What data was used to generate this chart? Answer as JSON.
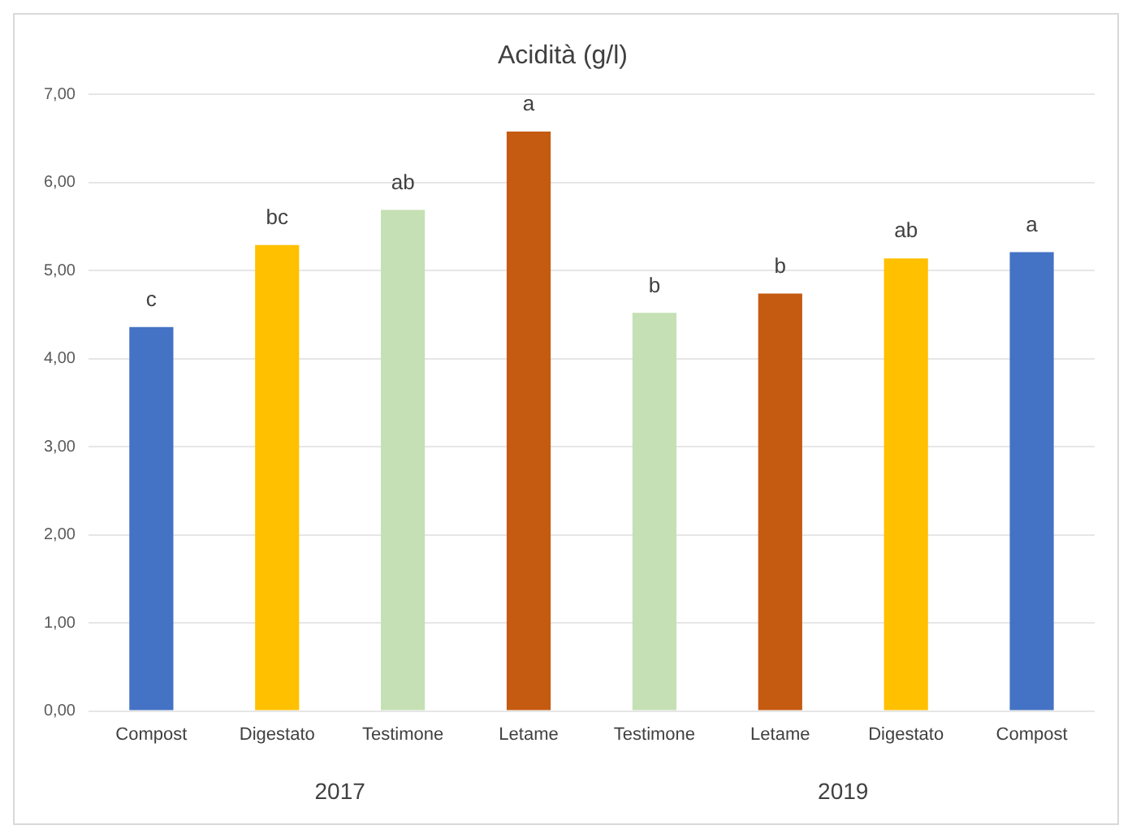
{
  "chart_data": {
    "type": "bar",
    "title": "Acidità (g/l)",
    "categories": [
      "Compost",
      "Digestato",
      "Testimone",
      "Letame",
      "Testimone",
      "Letame",
      "Digestato",
      "Compost"
    ],
    "values": [
      4.36,
      5.29,
      5.69,
      6.58,
      4.52,
      4.74,
      5.14,
      5.21
    ],
    "colors": [
      "#4472c4",
      "#ffc000",
      "#c5e0b4",
      "#c55a11",
      "#c5e0b4",
      "#c55a11",
      "#ffc000",
      "#4472c4"
    ],
    "value_labels": [
      "c",
      "bc",
      "ab",
      "a",
      "b",
      "b",
      "ab",
      "a"
    ],
    "ylim": [
      0,
      7
    ],
    "yticks": [
      {
        "value": 0,
        "label": "0,00"
      },
      {
        "value": 1,
        "label": "1,00"
      },
      {
        "value": 2,
        "label": "2,00"
      },
      {
        "value": 3,
        "label": "3,00"
      },
      {
        "value": 4,
        "label": "4,00"
      },
      {
        "value": 5,
        "label": "5,00"
      },
      {
        "value": 6,
        "label": "6,00"
      },
      {
        "value": 7,
        "label": "7,00"
      }
    ],
    "grid": "y",
    "annotations": [
      "2017",
      "2019"
    ]
  }
}
